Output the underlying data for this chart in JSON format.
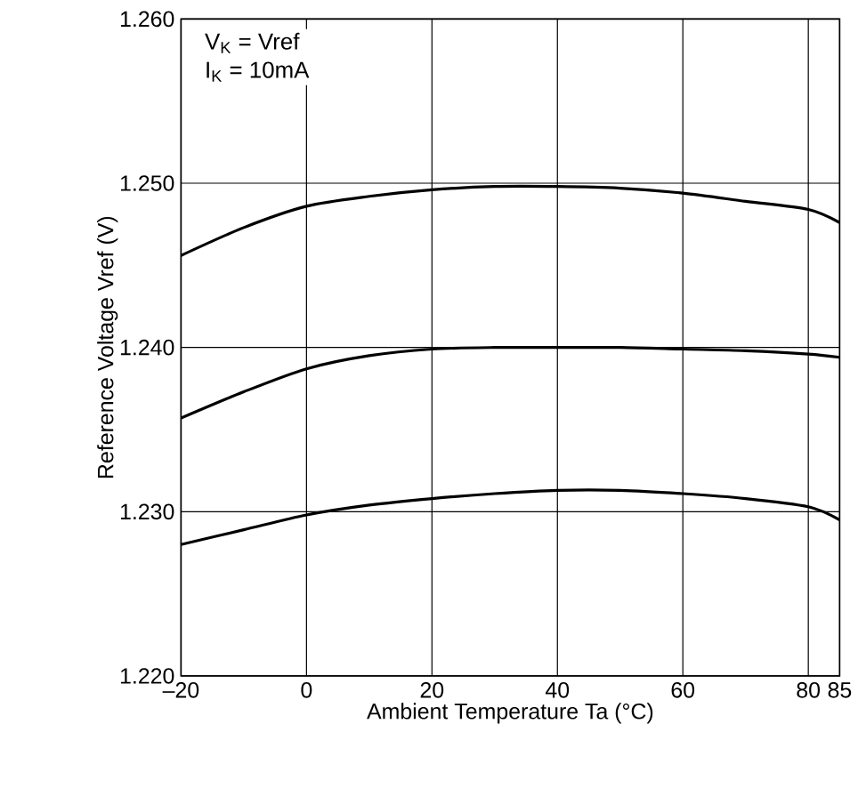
{
  "chart_data": {
    "type": "line",
    "xlabel": "Ambient Temperature  Ta (°C)",
    "ylabel": "Reference Voltage  Vref (V)",
    "annotations": [
      "V$_{K}$ = Vref",
      "I$_{K}$ = 10mA"
    ],
    "x": [
      -20,
      -10,
      0,
      10,
      20,
      30,
      40,
      50,
      60,
      70,
      80,
      85
    ],
    "series": [
      {
        "color": "#000000",
        "values": [
          1.2456,
          1.2473,
          1.2486,
          1.2492,
          1.2496,
          1.2498,
          1.2498,
          1.2497,
          1.2494,
          1.2489,
          1.2484,
          1.2476
        ]
      },
      {
        "color": "#000000",
        "values": [
          1.2357,
          1.2373,
          1.2387,
          1.2395,
          1.2399,
          1.24,
          1.24,
          1.24,
          1.2399,
          1.2398,
          1.2396,
          1.2394
        ]
      },
      {
        "color": "#000000",
        "values": [
          1.228,
          1.2289,
          1.2298,
          1.2304,
          1.2308,
          1.2311,
          1.2313,
          1.2313,
          1.2311,
          1.2308,
          1.2303,
          1.2295
        ]
      }
    ],
    "xlim": [
      -20,
      85
    ],
    "xticks": [
      {
        "value": -20,
        "label": "–20"
      },
      0,
      20,
      40,
      60,
      80,
      85
    ],
    "ylim": [
      1.22,
      1.26
    ],
    "yticks": [
      {
        "value": 1.22,
        "label": "1.220"
      },
      {
        "value": 1.23,
        "label": "1.230"
      },
      {
        "value": 1.24,
        "label": "1.240"
      },
      {
        "value": 1.25,
        "label": "1.250"
      },
      {
        "value": 1.26,
        "label": "1.260"
      }
    ],
    "grid": true,
    "marker": "none",
    "line_style": "solid"
  }
}
